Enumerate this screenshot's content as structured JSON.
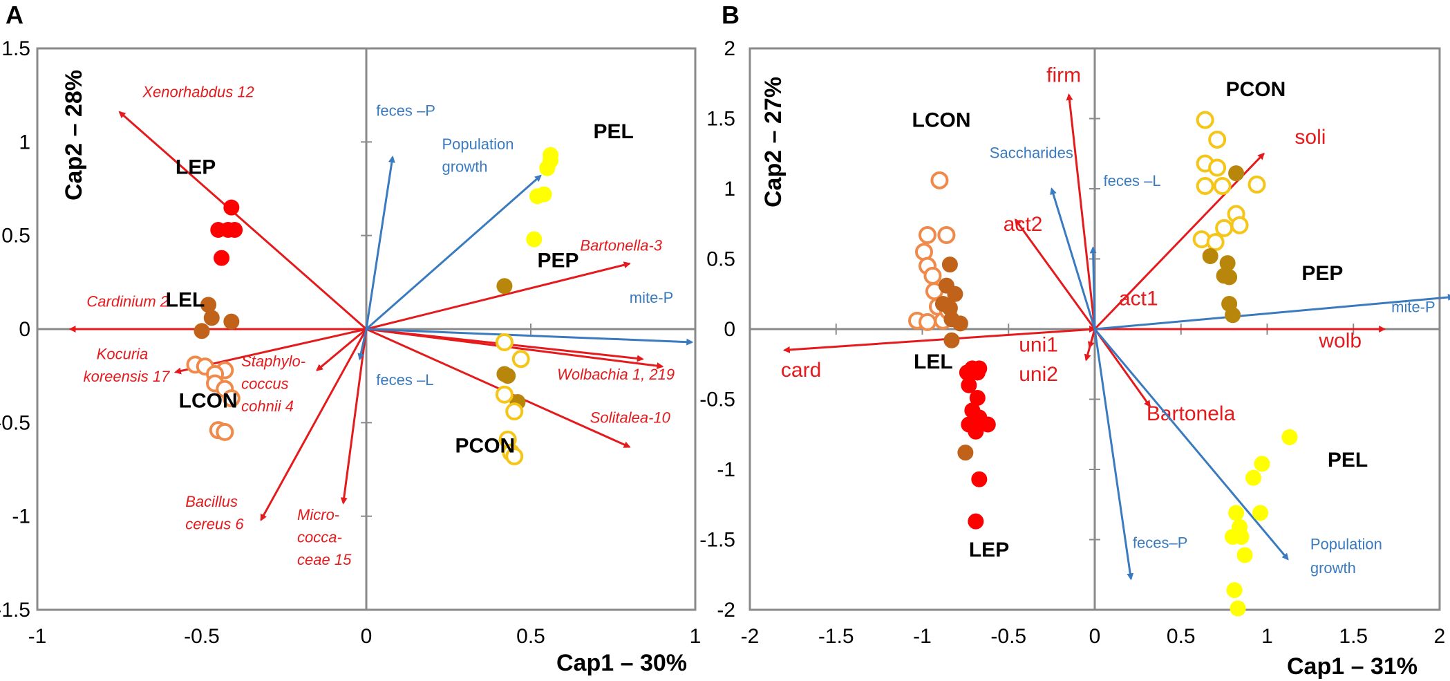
{
  "colors": {
    "red": "#e41a1c",
    "blue": "#3a7abf",
    "frame": "#8a8a8a",
    "axis": "#8a8a8a"
  },
  "chart_data": [
    {
      "panel": "A",
      "type": "scatter",
      "xlabel": "Cap1 – 30%",
      "ylabel": "Cap2 – 28%",
      "xlim": [
        -1,
        1
      ],
      "ylim": [
        -1.5,
        1.5
      ],
      "xticks": [
        "-1",
        "-0.5",
        "0",
        "0.5",
        "1"
      ],
      "xtick_values": [
        -1,
        -0.5,
        0,
        0.5,
        1
      ],
      "yticks": [
        "1.5",
        "1",
        "0.5",
        "0",
        "-0.5",
        "-1",
        "-1.5"
      ],
      "ytick_values": [
        1.5,
        1,
        0.5,
        0,
        -0.5,
        -1,
        -1.5
      ],
      "group_labels": [
        {
          "text": "LEP",
          "x": -0.58,
          "y": 0.83
        },
        {
          "text": "LEL",
          "x": -0.61,
          "y": 0.12
        },
        {
          "text": "LCON",
          "x": -0.57,
          "y": -0.42
        },
        {
          "text": "PEL",
          "x": 0.69,
          "y": 1.02
        },
        {
          "text": "PEP",
          "x": 0.52,
          "y": 0.33
        },
        {
          "text": "PCON",
          "x": 0.27,
          "y": -0.66
        }
      ],
      "series": [
        {
          "name": "LEP",
          "color": "#ff0000",
          "filled": true,
          "points": [
            [
              -0.41,
              0.65
            ],
            [
              -0.45,
              0.53
            ],
            [
              -0.42,
              0.53
            ],
            [
              -0.4,
              0.53
            ],
            [
              -0.44,
              0.38
            ]
          ]
        },
        {
          "name": "LEL",
          "color": "#c0621a",
          "filled": true,
          "points": [
            [
              -0.48,
              0.13
            ],
            [
              -0.47,
              0.06
            ],
            [
              -0.41,
              0.04
            ],
            [
              -0.5,
              -0.01
            ]
          ]
        },
        {
          "name": "LCON",
          "color": "#f08a4b",
          "filled": false,
          "points": [
            [
              -0.52,
              -0.19
            ],
            [
              -0.49,
              -0.2
            ],
            [
              -0.43,
              -0.22
            ],
            [
              -0.46,
              -0.24
            ],
            [
              -0.46,
              -0.29
            ],
            [
              -0.43,
              -0.32
            ],
            [
              -0.41,
              -0.37
            ],
            [
              -0.45,
              -0.54
            ],
            [
              -0.43,
              -0.55
            ]
          ]
        },
        {
          "name": "PEL",
          "color": "#ffff00",
          "filled": true,
          "points": [
            [
              0.56,
              0.93
            ],
            [
              0.56,
              0.9
            ],
            [
              0.55,
              0.86
            ],
            [
              0.52,
              0.71
            ],
            [
              0.54,
              0.72
            ],
            [
              0.51,
              0.48
            ]
          ]
        },
        {
          "name": "PEP",
          "color": "#b8860b",
          "filled": true,
          "points": [
            [
              0.42,
              0.23
            ],
            [
              0.42,
              -0.24
            ],
            [
              0.43,
              -0.25
            ],
            [
              0.46,
              -0.39
            ]
          ]
        },
        {
          "name": "PCON",
          "color": "#f5c518",
          "filled": false,
          "points": [
            [
              0.42,
              -0.07
            ],
            [
              0.47,
              -0.16
            ],
            [
              0.42,
              -0.35
            ],
            [
              0.45,
              -0.44
            ],
            [
              0.43,
              -0.59
            ],
            [
              0.44,
              -0.66
            ],
            [
              0.45,
              -0.68
            ]
          ]
        }
      ],
      "vectors": [
        {
          "label": "Xenorhabdus 12",
          "x": -0.75,
          "y": 1.16,
          "color": "red",
          "italic": true,
          "lx": -0.68,
          "ly": 1.24
        },
        {
          "label": "Cardinium 2",
          "x": -0.9,
          "y": 0.0,
          "color": "red",
          "italic": true,
          "lx": -0.85,
          "ly": 0.12
        },
        {
          "label": "Kocuria",
          "x": -0.58,
          "y": -0.23,
          "color": "red",
          "italic": true,
          "lx": -0.82,
          "ly": -0.16
        },
        {
          "label": "koreensis 17",
          "x": null,
          "y": null,
          "color": "red",
          "italic": true,
          "lx": -0.86,
          "ly": -0.28
        },
        {
          "label": "Staphylo-",
          "x": -0.15,
          "y": -0.22,
          "color": "red",
          "italic": true,
          "lx": -0.38,
          "ly": -0.2
        },
        {
          "label": "coccus",
          "x": null,
          "y": null,
          "color": "red",
          "italic": true,
          "lx": -0.38,
          "ly": -0.32
        },
        {
          "label": "cohnii 4",
          "x": null,
          "y": null,
          "color": "red",
          "italic": true,
          "lx": -0.38,
          "ly": -0.44
        },
        {
          "label": "Bacillus",
          "x": -0.32,
          "y": -1.02,
          "color": "red",
          "italic": true,
          "lx": -0.55,
          "ly": -0.95
        },
        {
          "label": "cereus 6",
          "x": null,
          "y": null,
          "color": "red",
          "italic": true,
          "lx": -0.55,
          "ly": -1.07
        },
        {
          "label": "Micro-",
          "x": -0.07,
          "y": -0.93,
          "color": "red",
          "italic": true,
          "lx": -0.21,
          "ly": -1.02
        },
        {
          "label": "cocca-",
          "x": null,
          "y": null,
          "color": "red",
          "italic": true,
          "lx": -0.21,
          "ly": -1.14
        },
        {
          "label": "ceae 15",
          "x": null,
          "y": null,
          "color": "red",
          "italic": true,
          "lx": -0.21,
          "ly": -1.26
        },
        {
          "label": "Bartonella-3",
          "x": 0.8,
          "y": 0.35,
          "color": "red",
          "italic": true,
          "lx": 0.65,
          "ly": 0.42
        },
        {
          "label": "Wolbachia 1, 219",
          "x": 0.84,
          "y": -0.16,
          "color": "red",
          "italic": true,
          "lx": 0.58,
          "ly": -0.27
        },
        {
          "label": "",
          "x": 0.9,
          "y": -0.2,
          "color": "red",
          "italic": true,
          "lx": null,
          "ly": null
        },
        {
          "label": "Solitalea-10",
          "x": 0.8,
          "y": -0.63,
          "color": "red",
          "italic": true,
          "lx": 0.68,
          "ly": -0.5
        },
        {
          "label": "Population",
          "x": 0.53,
          "y": 0.82,
          "color": "blue",
          "italic": false,
          "lx": 0.23,
          "ly": 0.96
        },
        {
          "label": "growth",
          "x": null,
          "y": null,
          "color": "blue",
          "italic": false,
          "lx": 0.23,
          "ly": 0.84
        },
        {
          "label": "feces –P",
          "x": 0.08,
          "y": 0.92,
          "color": "blue",
          "italic": false,
          "lx": 0.03,
          "ly": 1.14
        },
        {
          "label": "mite-P",
          "x": 0.99,
          "y": -0.07,
          "color": "blue",
          "italic": false,
          "lx": 0.8,
          "ly": 0.14
        },
        {
          "label": "feces –L",
          "x": -0.02,
          "y": -0.16,
          "color": "blue",
          "italic": false,
          "lx": 0.03,
          "ly": -0.3
        }
      ]
    },
    {
      "panel": "B",
      "type": "scatter",
      "xlabel": "Cap1 – 31%",
      "ylabel": "Cap2 – 27%",
      "xlim": [
        -2,
        2
      ],
      "ylim": [
        -2,
        2
      ],
      "xticks": [
        "-2",
        "-1.5",
        "-1",
        "-0.5",
        "0",
        "0.5",
        "1",
        "1.5",
        "2"
      ],
      "xtick_values": [
        -2,
        -1.5,
        -1,
        -0.5,
        0,
        0.5,
        1,
        1.5,
        2
      ],
      "yticks": [
        "2",
        "1.5",
        "1",
        "0.5",
        "0",
        "-0.5",
        "-1",
        "-1.5",
        "-2"
      ],
      "ytick_values": [
        2,
        1.5,
        1,
        0.5,
        0,
        -0.5,
        -1,
        -1.5,
        -2
      ],
      "group_labels": [
        {
          "text": "LCON",
          "x": -1.06,
          "y": 1.44
        },
        {
          "text": "LEL",
          "x": -1.05,
          "y": -0.28
        },
        {
          "text": "LEP",
          "x": -0.73,
          "y": -1.62
        },
        {
          "text": "PCON",
          "x": 0.76,
          "y": 1.66
        },
        {
          "text": "PEP",
          "x": 1.2,
          "y": 0.35
        },
        {
          "text": "PEL",
          "x": 1.35,
          "y": -0.98
        }
      ],
      "series": [
        {
          "name": "LCON",
          "color": "#f08a4b",
          "filled": false,
          "points": [
            [
              -0.9,
              1.06
            ],
            [
              -0.97,
              0.67
            ],
            [
              -0.86,
              0.67
            ],
            [
              -0.99,
              0.55
            ],
            [
              -0.97,
              0.45
            ],
            [
              -0.94,
              0.38
            ],
            [
              -0.93,
              0.27
            ],
            [
              -0.91,
              0.16
            ],
            [
              -1.03,
              0.06
            ],
            [
              -0.97,
              0.05
            ],
            [
              -0.88,
              0.06
            ],
            [
              -0.85,
              0.13
            ]
          ]
        },
        {
          "name": "LEL",
          "color": "#c0621a",
          "filled": true,
          "points": [
            [
              -0.84,
              0.46
            ],
            [
              -0.86,
              0.31
            ],
            [
              -0.81,
              0.25
            ],
            [
              -0.88,
              0.18
            ],
            [
              -0.84,
              0.15
            ],
            [
              -0.83,
              0.07
            ],
            [
              -0.78,
              0.04
            ],
            [
              -0.83,
              -0.08
            ],
            [
              -0.75,
              -0.88
            ]
          ]
        },
        {
          "name": "LEP",
          "color": "#ff0000",
          "filled": true,
          "points": [
            [
              -0.71,
              -0.28
            ],
            [
              -0.74,
              -0.31
            ],
            [
              -0.67,
              -0.28
            ],
            [
              -0.68,
              -0.31
            ],
            [
              -0.73,
              -0.4
            ],
            [
              -0.68,
              -0.49
            ],
            [
              -0.71,
              -0.58
            ],
            [
              -0.73,
              -0.68
            ],
            [
              -0.67,
              -0.63
            ],
            [
              -0.69,
              -0.73
            ],
            [
              -0.62,
              -0.68
            ],
            [
              -0.67,
              -1.07
            ],
            [
              -0.69,
              -1.37
            ]
          ]
        },
        {
          "name": "PCON",
          "color": "#f5c518",
          "filled": false,
          "points": [
            [
              0.64,
              1.49
            ],
            [
              0.71,
              1.35
            ],
            [
              0.64,
              1.18
            ],
            [
              0.71,
              1.15
            ],
            [
              0.64,
              1.02
            ],
            [
              0.74,
              1.02
            ],
            [
              0.94,
              1.03
            ],
            [
              0.82,
              0.82
            ],
            [
              0.75,
              0.72
            ],
            [
              0.84,
              0.74
            ],
            [
              0.62,
              0.64
            ],
            [
              0.7,
              0.62
            ]
          ]
        },
        {
          "name": "PEP",
          "color": "#b8860b",
          "filled": true,
          "points": [
            [
              0.82,
              1.11
            ],
            [
              0.67,
              0.52
            ],
            [
              0.77,
              0.47
            ],
            [
              0.75,
              0.38
            ],
            [
              0.78,
              0.37
            ],
            [
              0.78,
              0.18
            ],
            [
              0.8,
              0.1
            ]
          ]
        },
        {
          "name": "PEL",
          "color": "#ffff00",
          "filled": true,
          "points": [
            [
              1.13,
              -0.77
            ],
            [
              0.97,
              -0.96
            ],
            [
              0.92,
              -1.06
            ],
            [
              0.82,
              -1.31
            ],
            [
              0.84,
              -1.41
            ],
            [
              0.96,
              -1.31
            ],
            [
              0.85,
              -1.48
            ],
            [
              0.8,
              -1.48
            ],
            [
              0.87,
              -1.61
            ],
            [
              0.81,
              -1.86
            ],
            [
              0.83,
              -1.99
            ]
          ]
        }
      ],
      "vectors": [
        {
          "label": "firm",
          "x": -0.15,
          "y": 1.67,
          "color": "red",
          "bold": false,
          "lx": -0.28,
          "ly": 1.76
        },
        {
          "label": "soli",
          "x": 0.98,
          "y": 1.25,
          "color": "red",
          "bold": false,
          "lx": 1.16,
          "ly": 1.32
        },
        {
          "label": "act2",
          "x": -0.46,
          "y": 0.78,
          "color": "red",
          "bold": false,
          "lx": -0.53,
          "ly": 0.7
        },
        {
          "label": "act1",
          "x": 0.0,
          "y": 0.0,
          "color": "red",
          "bold": false,
          "lx": 0.14,
          "ly": 0.17
        },
        {
          "label": "wolb",
          "x": 1.68,
          "y": 0.0,
          "color": "red",
          "bold": false,
          "lx": 1.3,
          "ly": -0.13
        },
        {
          "label": "card",
          "x": -1.8,
          "y": -0.15,
          "color": "red",
          "bold": false,
          "lx": -1.82,
          "ly": -0.34
        },
        {
          "label": "uni1",
          "x": -0.03,
          "y": -0.13,
          "color": "red",
          "bold": false,
          "lx": -0.44,
          "ly": -0.16
        },
        {
          "label": "uni2",
          "x": -0.05,
          "y": -0.22,
          "color": "red",
          "bold": false,
          "lx": -0.44,
          "ly": -0.37
        },
        {
          "label": "Bartonela",
          "x": 0.32,
          "y": -0.55,
          "color": "red",
          "bold": false,
          "lx": 0.3,
          "ly": -0.65
        },
        {
          "label": "Saccharides",
          "x": -0.25,
          "y": 1.0,
          "color": "blue",
          "bold": false,
          "lx": -0.61,
          "ly": 1.22
        },
        {
          "label": "feces –L",
          "x": -0.01,
          "y": 0.58,
          "color": "blue",
          "bold": false,
          "lx": 0.05,
          "ly": 1.02
        },
        {
          "label": "mite-P",
          "x": 2.08,
          "y": 0.23,
          "color": "blue",
          "bold": false,
          "lx": 1.72,
          "ly": 0.12
        },
        {
          "label": "feces–P",
          "x": 0.21,
          "y": -1.78,
          "color": "blue",
          "bold": false,
          "lx": 0.22,
          "ly": -1.56
        },
        {
          "label": "Population",
          "x": 1.12,
          "y": -1.64,
          "color": "blue",
          "bold": false,
          "lx": 1.25,
          "ly": -1.57
        },
        {
          "label": "growth",
          "x": null,
          "y": null,
          "color": "blue",
          "bold": false,
          "lx": 1.25,
          "ly": -1.74
        }
      ]
    }
  ]
}
